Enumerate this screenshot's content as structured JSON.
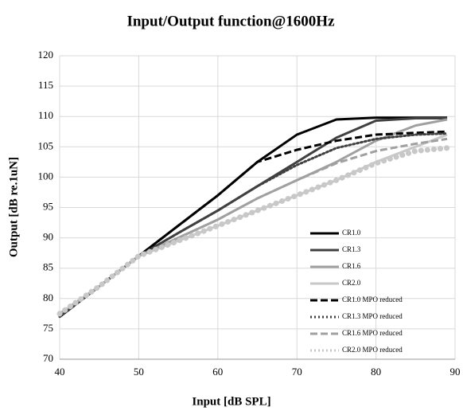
{
  "chart_data": {
    "type": "line",
    "title": "Input/Output function@1600Hz",
    "x_label": "Input [dB SPL]",
    "y_label": "Output [dB re.1uN]",
    "x": [
      40,
      45,
      50,
      55,
      60,
      65,
      70,
      75,
      80,
      85,
      89
    ],
    "xlim": [
      40,
      90
    ],
    "xticks": [
      40,
      50,
      60,
      70,
      80,
      90
    ],
    "ylim": [
      70,
      120
    ],
    "yticks": [
      70,
      75,
      80,
      85,
      90,
      95,
      100,
      105,
      110,
      115,
      120
    ],
    "grid": true,
    "legend": "lower right",
    "series": [
      {
        "name": "CR1.0",
        "color": "#000000",
        "dash": "solid",
        "values": [
          77,
          82,
          87,
          92,
          97,
          102.5,
          107,
          109.5,
          109.8,
          109.8,
          109.8
        ]
      },
      {
        "name": "CR1.3",
        "color": "#404040",
        "dash": "solid",
        "values": [
          77,
          82,
          87,
          90.8,
          94.5,
          98.5,
          102.5,
          106.5,
          109.3,
          109.7,
          109.7
        ]
      },
      {
        "name": "CR1.6",
        "color": "#a0a0a0",
        "dash": "solid",
        "values": [
          77.5,
          82,
          87,
          90,
          93,
          96.5,
          99.5,
          102.5,
          106,
          108.5,
          109.5
        ]
      },
      {
        "name": "CR2.0",
        "color": "#c8c8c8",
        "dash": "solid",
        "values": [
          77.5,
          82,
          87,
          89.5,
          92,
          94.5,
          97,
          99.5,
          102.5,
          105,
          107
        ]
      },
      {
        "name": "CR1.0 MPO reduced",
        "color": "#000000",
        "dash": "dashed",
        "values": [
          77,
          82,
          87,
          92,
          97,
          102.5,
          104.5,
          106,
          107,
          107.3,
          107.5
        ]
      },
      {
        "name": "CR1.3 MPO reduced",
        "color": "#404040",
        "dash": "dotted",
        "values": [
          77,
          82,
          87,
          90.8,
          94.5,
          98.5,
          102,
          104.8,
          106.3,
          107,
          107.2
        ]
      },
      {
        "name": "CR1.6 MPO reduced",
        "color": "#a0a0a0",
        "dash": "dashed",
        "values": [
          77.5,
          82,
          87,
          90,
          93,
          96.5,
          99.5,
          102.3,
          104.3,
          105.5,
          106.3
        ]
      },
      {
        "name": "CR2.0 MPO reduced",
        "color": "#c8c8c8",
        "dash": "dotted",
        "values": [
          77.5,
          82,
          87,
          89.5,
          92,
          94.5,
          97,
          99.5,
          102.3,
          104.3,
          104.8
        ]
      }
    ]
  }
}
